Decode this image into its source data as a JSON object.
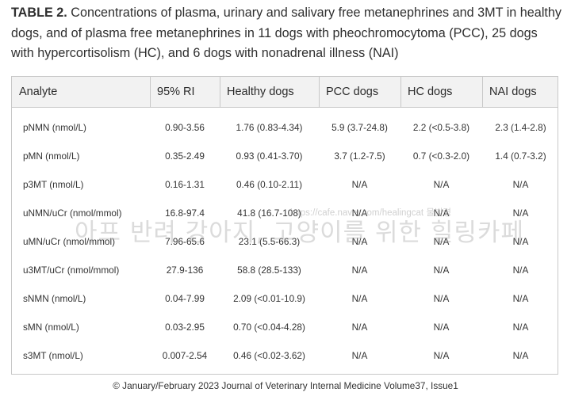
{
  "caption": {
    "label": "TABLE 2.",
    "text": "Concentrations of plasma, urinary and salivary free metanephrines and 3MT in healthy dogs, and of plasma free metanephrines in 11 dogs with pheochromocytoma (PCC), 25 dogs with hypercortisolism (HC), and 6 dogs with nonadrenal illness (NAI)"
  },
  "table": {
    "headers": [
      "Analyte",
      "95% RI",
      "Healthy dogs",
      "PCC dogs",
      "HC dogs",
      "NAI dogs"
    ],
    "rows": [
      [
        "pNMN (nmol/L)",
        "0.90-3.56",
        "1.76 (0.83-4.34)",
        "5.9 (3.7-24.8)",
        "2.2 (<0.5-3.8)",
        "2.3 (1.4-2.8)"
      ],
      [
        "pMN (nmol/L)",
        "0.35-2.49",
        "0.93 (0.41-3.70)",
        "3.7 (1.2-7.5)",
        "0.7 (<0.3-2.0)",
        "1.4 (0.7-3.2)"
      ],
      [
        "p3MT (nmol/L)",
        "0.16-1.31",
        "0.46 (0.10-2.11)",
        "N/A",
        "N/A",
        "N/A"
      ],
      [
        "uNMN/uCr (nmol/mmol)",
        "16.8-97.4",
        "41.8 (16.7-108)",
        "N/A",
        "N/A",
        "N/A"
      ],
      [
        "uMN/uCr (nmol/mmol)",
        "7.96-65.6",
        "23.1 (5.5-66.3)",
        "N/A",
        "N/A",
        "N/A"
      ],
      [
        "u3MT/uCr (nmol/mmol)",
        "27.9-136",
        "58.8 (28.5-133)",
        "N/A",
        "N/A",
        "N/A"
      ],
      [
        "sNMN (nmol/L)",
        "0.04-7.99",
        "2.09 (<0.01-10.9)",
        "N/A",
        "N/A",
        "N/A"
      ],
      [
        "sMN (nmol/L)",
        "0.03-2.95",
        "0.70 (<0.04-4.28)",
        "N/A",
        "N/A",
        "N/A"
      ],
      [
        "s3MT (nmol/L)",
        "0.007-2.54",
        "0.46 (<0.02-3.62)",
        "N/A",
        "N/A",
        "N/A"
      ]
    ]
  },
  "watermark": {
    "url": "https://cafe.naver.com/healingcat 물빛령",
    "text": "아프 반려 강아지, 고양이를 위한 힐링카페"
  },
  "footer": "© January/February 2023 Journal of Veterinary Internal Medicine Volume37, Issue1"
}
